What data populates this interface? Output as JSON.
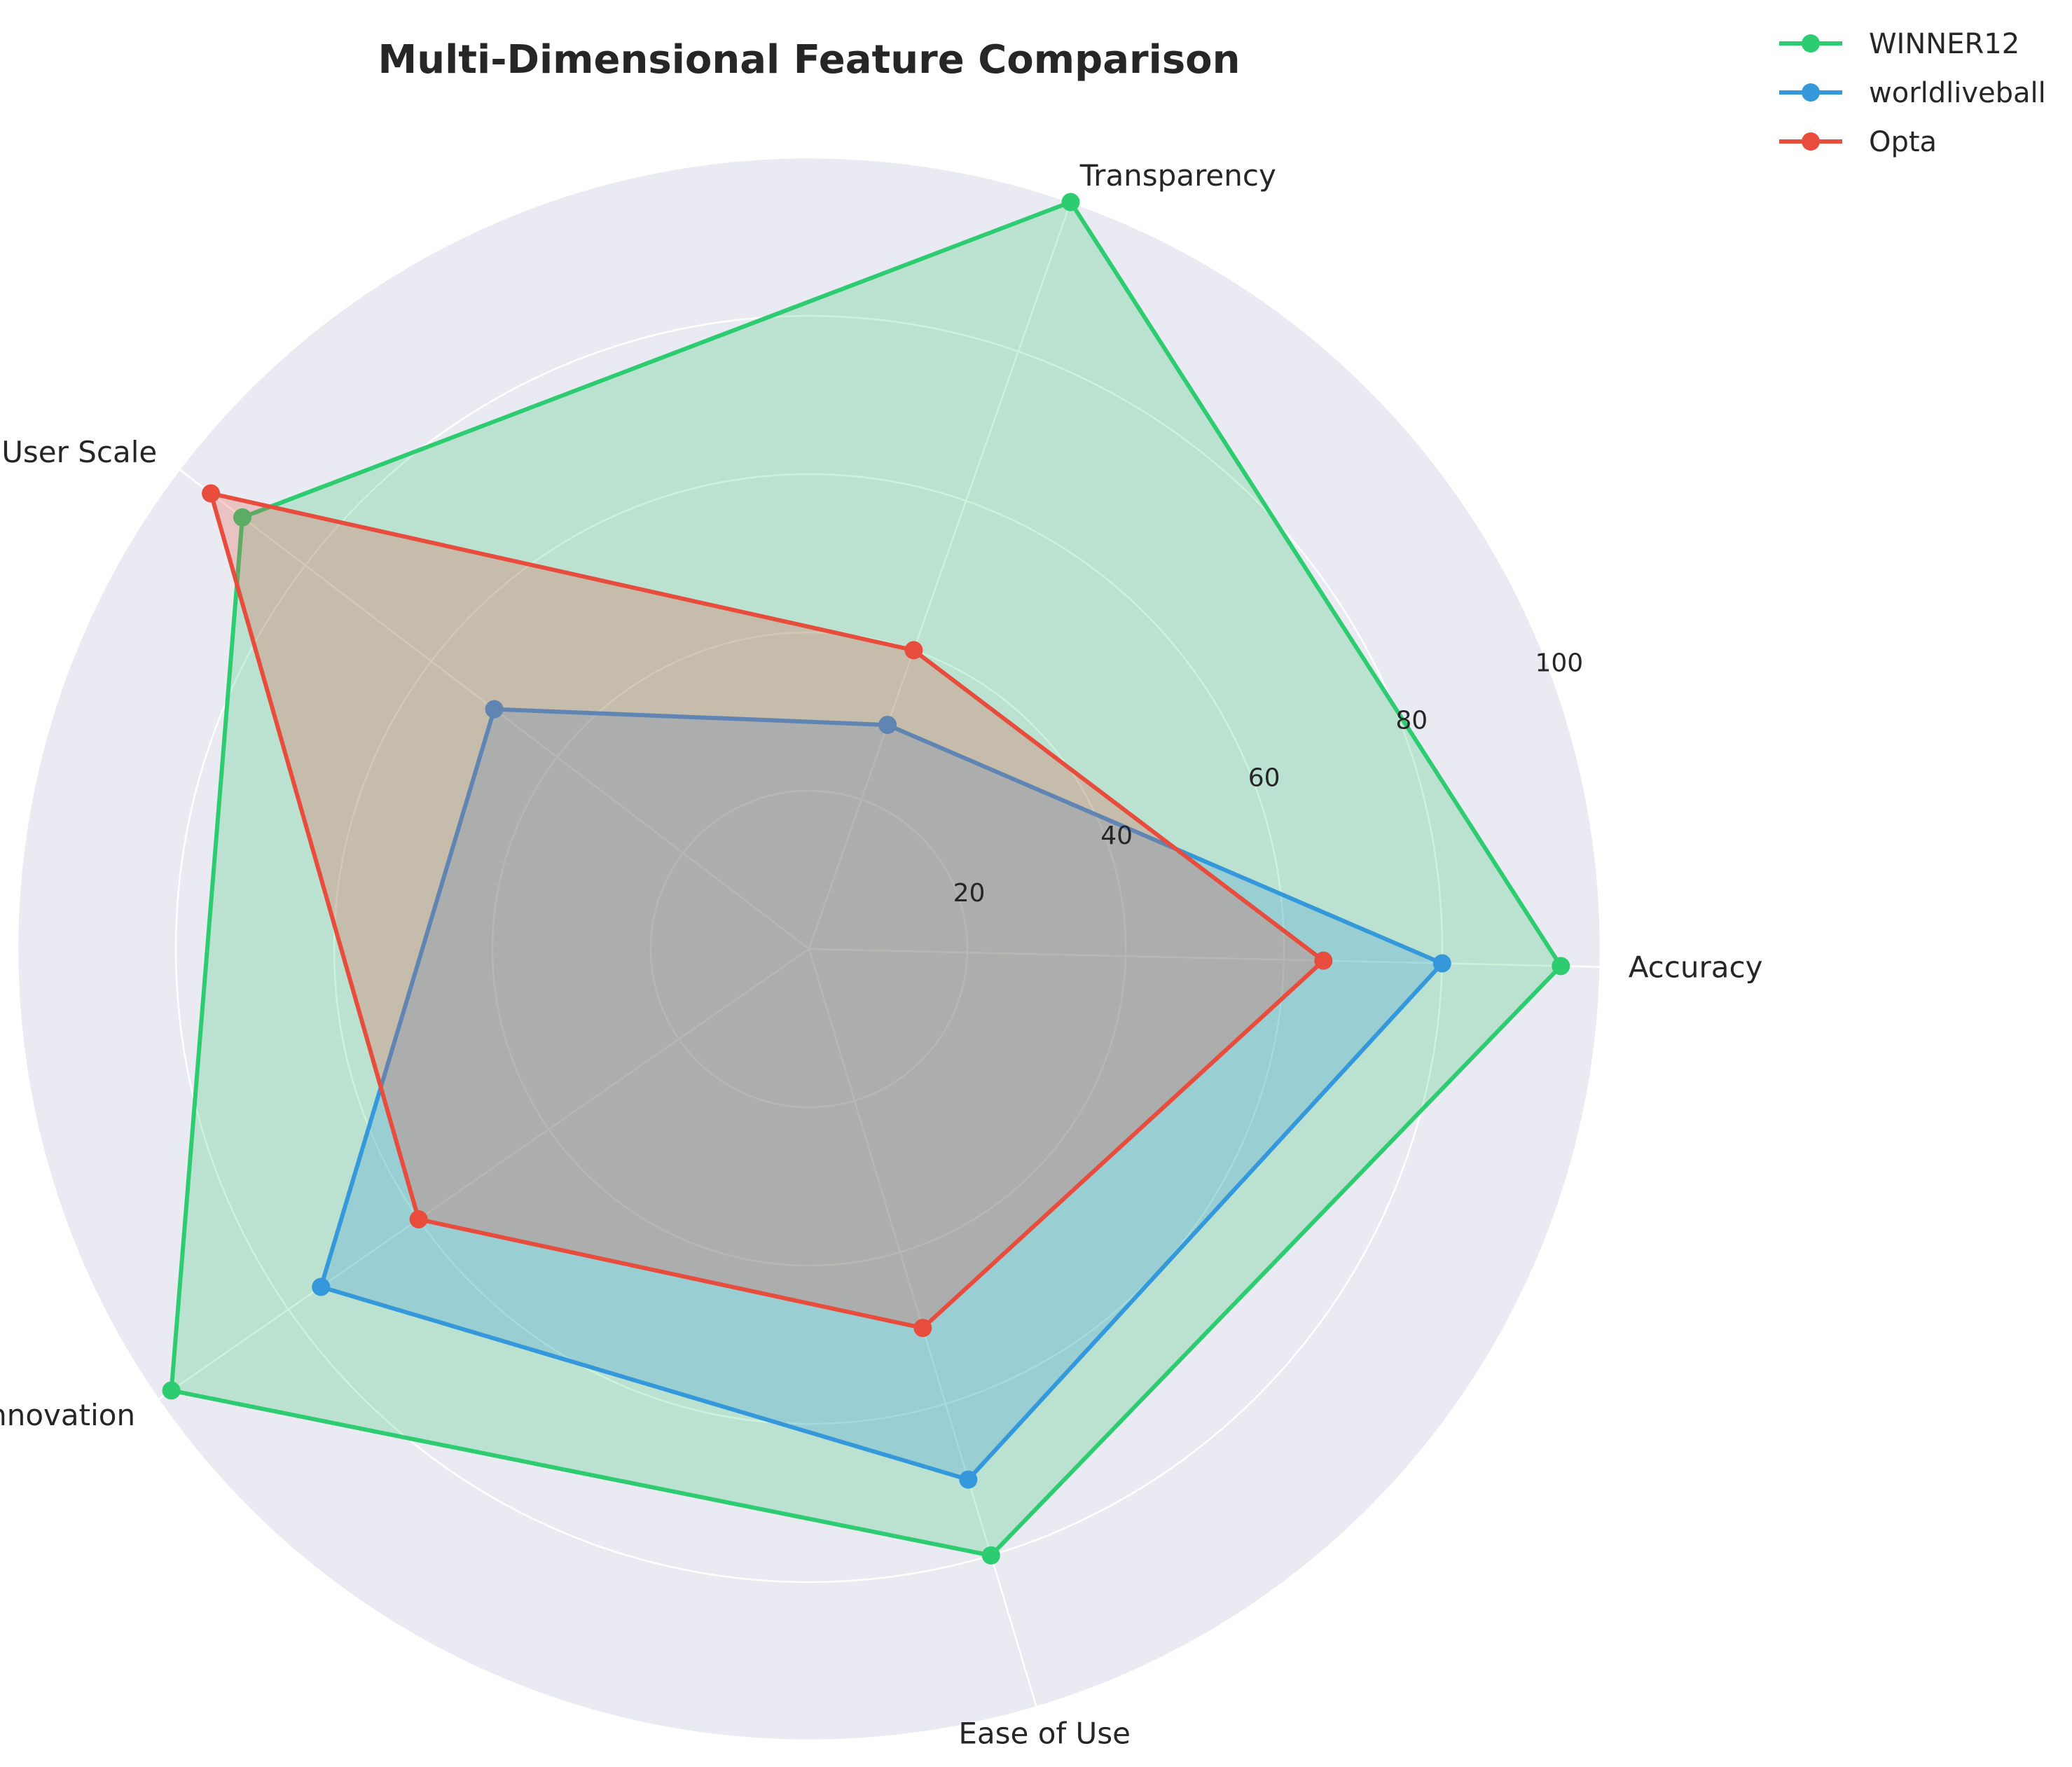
{
  "chart_data": {
    "type": "radar",
    "title": "Multi-Dimensional Feature Comparison",
    "categories": [
      "Accuracy",
      "Transparency",
      "User Scale",
      "Tech Innovation",
      "Ease of Use"
    ],
    "rlim": [
      0,
      100
    ],
    "rticks": [
      20,
      40,
      60,
      80,
      100
    ],
    "grid": true,
    "legend_position": "top-right",
    "background_color": "#EAEAF2",
    "series": [
      {
        "name": "WINNER12",
        "color": "#2ECC71",
        "values": [
          95,
          100,
          90,
          98,
          80
        ]
      },
      {
        "name": "worldliveball",
        "color": "#3498DB",
        "values": [
          80,
          30,
          50,
          75,
          70
        ]
      },
      {
        "name": "Opta",
        "color": "#E74C3C",
        "values": [
          65,
          40,
          95,
          60,
          50
        ]
      }
    ]
  }
}
